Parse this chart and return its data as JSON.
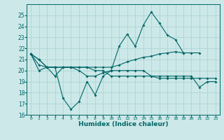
{
  "x": [
    0,
    1,
    2,
    3,
    4,
    5,
    6,
    7,
    8,
    9,
    10,
    11,
    12,
    13,
    14,
    15,
    16,
    17,
    18,
    19,
    20,
    21,
    22,
    23
  ],
  "line1": [
    21.5,
    21.0,
    20.3,
    20.3,
    17.5,
    16.5,
    17.2,
    19.0,
    17.8,
    19.5,
    20.0,
    22.2,
    23.3,
    22.2,
    24.1,
    25.3,
    24.3,
    23.2,
    22.8,
    21.6,
    null,
    null,
    null,
    null
  ],
  "line2": [
    21.5,
    20.5,
    20.3,
    20.3,
    20.3,
    20.3,
    20.3,
    20.3,
    20.3,
    20.3,
    20.3,
    20.5,
    20.8,
    21.0,
    21.2,
    21.3,
    21.5,
    21.6,
    21.7,
    21.6,
    21.6,
    21.6,
    null,
    null
  ],
  "line3": [
    21.5,
    21.0,
    20.3,
    20.3,
    20.3,
    20.3,
    20.3,
    20.3,
    20.0,
    20.0,
    19.5,
    19.5,
    19.5,
    19.5,
    19.5,
    19.5,
    19.3,
    19.3,
    19.3,
    19.3,
    19.3,
    19.3,
    19.3,
    19.3
  ],
  "line4": [
    21.5,
    20.0,
    20.3,
    19.5,
    20.3,
    20.3,
    20.0,
    19.5,
    19.5,
    19.8,
    20.0,
    20.0,
    20.0,
    20.0,
    20.0,
    19.5,
    19.5,
    19.5,
    19.5,
    19.5,
    19.5,
    18.5,
    19.0,
    19.0
  ],
  "bg_color": "#cce8e8",
  "grid_color": "#aad0d0",
  "line_color": "#006666",
  "xlabel": "Humidex (Indice chaleur)",
  "ylim": [
    16,
    26
  ],
  "xlim": [
    -0.5,
    23.5
  ],
  "yticks": [
    16,
    17,
    18,
    19,
    20,
    21,
    22,
    23,
    24,
    25
  ],
  "xticks": [
    0,
    1,
    2,
    3,
    4,
    5,
    6,
    7,
    8,
    9,
    10,
    11,
    12,
    13,
    14,
    15,
    16,
    17,
    18,
    19,
    20,
    21,
    22,
    23
  ]
}
